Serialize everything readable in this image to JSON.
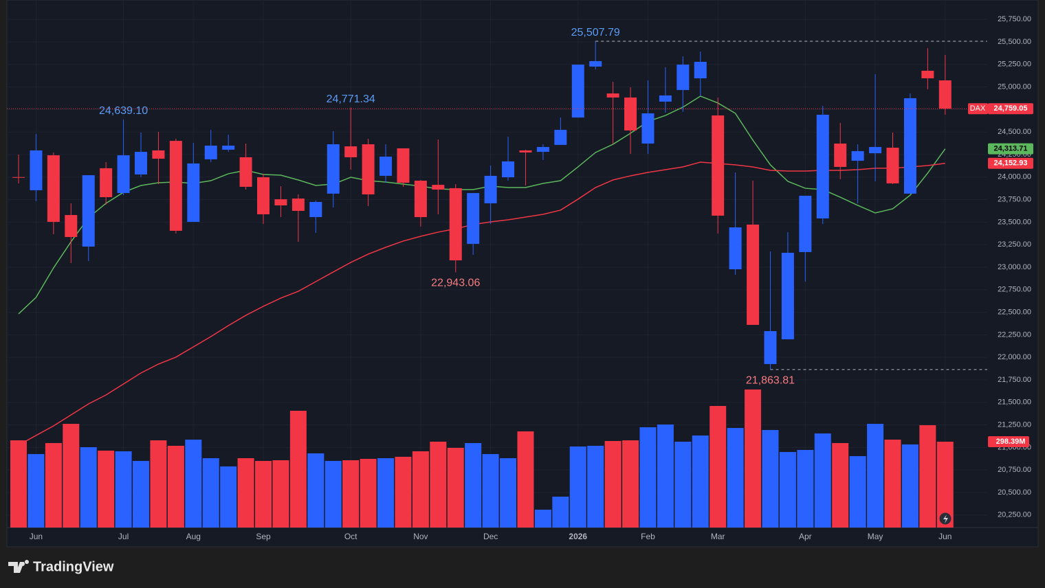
{
  "chart_data": {
    "type": "candlestick",
    "symbol": "DAX",
    "categories": [
      null,
      "Jun",
      null,
      null,
      null,
      null,
      "Jul",
      null,
      null,
      null,
      "Aug",
      null,
      null,
      null,
      "Sep",
      null,
      null,
      null,
      null,
      "Oct",
      null,
      null,
      null,
      "Nov",
      null,
      null,
      null,
      "Dec",
      null,
      null,
      null,
      null,
      "2026",
      null,
      null,
      null,
      "Feb",
      null,
      null,
      null,
      "Mar",
      null,
      null,
      null,
      null,
      "Apr",
      null,
      null,
      null,
      "May",
      null,
      null,
      null,
      "Jun"
    ],
    "open": [
      24000,
      23854,
      24242,
      23579,
      23229,
      24098,
      23823,
      24029,
      24296,
      24402,
      23503,
      24197,
      24304,
      24220,
      23998,
      23754,
      23762,
      23556,
      23816,
      24341,
      24364,
      24014,
      24319,
      23960,
      23914,
      23877,
      23259,
      23709,
      23998,
      24296,
      24280,
      24357,
      24661,
      25226,
      24928,
      24883,
      24372,
      24837,
      24966,
      25096,
      24684,
      22977,
      23473,
      21925,
      22200,
      23168,
      23541,
      24372,
      24181,
      24265,
      24326,
      23816,
      25180,
      25073
    ],
    "high": [
      24250,
      24479,
      24273,
      23709,
      24021,
      24166,
      24639.1,
      24494,
      24502,
      24425,
      24380,
      24524,
      24471,
      24372,
      24037,
      23899,
      23808,
      23739,
      24509,
      24771.34,
      24425,
      24364,
      24319,
      23968,
      24418,
      23922,
      23823,
      24128,
      24448,
      24304,
      24364,
      24661,
      25248,
      25507.79,
      25058,
      24997,
      25073,
      25218,
      25340,
      25393,
      24883,
      24052,
      23960,
      23175,
      23389,
      23793,
      24791,
      24601,
      24364,
      25142,
      24494,
      24928,
      25431,
      25355
    ],
    "low": [
      23930,
      23732,
      23366,
      23046,
      23069,
      23694,
      23800,
      23998,
      23922,
      23374,
      23503,
      24166,
      24281,
      23861,
      23480,
      23556,
      23282,
      23381,
      23663,
      24082,
      23678,
      23937,
      23892,
      23450,
      23587,
      22943.06,
      23137,
      23480,
      23960,
      23907,
      24189,
      24357,
      24661,
      25195,
      24364,
      24258,
      24258,
      24715,
      24723,
      24898,
      23374,
      22916,
      22360,
      21863.81,
      22200,
      22840,
      23480,
      23976,
      23709,
      23953,
      23922,
      23816,
      24974,
      24692
    ],
    "close": [
      23995,
      24296,
      23503,
      23335,
      24021,
      23777,
      24242,
      24280,
      24204,
      23404,
      24151,
      24349,
      24349,
      23892,
      23587,
      23686,
      23625,
      23724,
      24364,
      24220,
      23808,
      24227,
      23937,
      23556,
      23861,
      23076,
      23823,
      24014,
      24174,
      24273,
      24334,
      24524,
      25248,
      25287,
      24883,
      24517,
      24707,
      24906,
      25248,
      25279,
      23572,
      23442,
      22360,
      22291,
      23160,
      23793,
      24692,
      24113,
      24288,
      24334,
      23930,
      24875,
      25096,
      24759.05
    ],
    "up_color": "#2962ff",
    "down_color": "#f23645",
    "last_price_label": "24,759.05",
    "volume": {
      "values": [
        303.1,
        255.4,
        293.6,
        360.4,
        279.3,
        267.3,
        265.0,
        231.5,
        303.1,
        284.1,
        305.5,
        241.1,
        212.4,
        241.1,
        231.5,
        233.9,
        405.8,
        257.8,
        231.5,
        233.9,
        238.7,
        241.1,
        245.9,
        265.0,
        298.4,
        276.9,
        293.6,
        255.4,
        241.1,
        334.2,
        62.1,
        107.4,
        281.7,
        284.1,
        300.8,
        303.1,
        348.5,
        358.1,
        298.4,
        319.9,
        422.5,
        346.1,
        479.8,
        339.0,
        262.6,
        269.7,
        327.0,
        293.6,
        248.2,
        360.4,
        305.5,
        288.8,
        355.7,
        298.39
      ],
      "last_label": "298.39M"
    },
    "moving_averages": [
      {
        "color": "#5cb85c",
        "last_label": "24,313.71",
        "values": [
          22482,
          22665,
          22992,
          23282,
          23549,
          23709,
          23831,
          23907,
          23937,
          23945,
          23930,
          23960,
          24037,
          24075,
          24029,
          24021,
          23968,
          23907,
          23922,
          23998,
          23960,
          23945,
          23922,
          23899,
          23869,
          23861,
          23861,
          23899,
          23884,
          23884,
          23930,
          23960,
          24113,
          24273,
          24364,
          24486,
          24616,
          24684,
          24776,
          24898,
          24822,
          24707,
          24410,
          24136,
          23953,
          23876,
          23861,
          23777,
          23686,
          23602,
          23648,
          23800,
          24044,
          24313.71
        ]
      },
      {
        "color": "#f23645",
        "last_label": "24,152.93",
        "values": [
          21026,
          21133,
          21239,
          21361,
          21483,
          21582,
          21704,
          21826,
          21925,
          22002,
          22116,
          22230,
          22352,
          22466,
          22566,
          22657,
          22733,
          22840,
          22947,
          23053,
          23145,
          23221,
          23290,
          23343,
          23389,
          23427,
          23473,
          23503,
          23526,
          23556,
          23587,
          23633,
          23755,
          23884,
          23968,
          24014,
          24052,
          24082,
          24113,
          24166,
          24151,
          24136,
          24113,
          24075,
          24067,
          24067,
          24075,
          24075,
          24082,
          24098,
          24098,
          24113,
          24128,
          24152.93
        ]
      }
    ],
    "annotations": [
      {
        "text": "24,639.10",
        "value": 24639.1,
        "at": "high",
        "color": "#5b9cf6",
        "guide": false
      },
      {
        "text": "24,771.34",
        "value": 24771.34,
        "at": "high",
        "color": "#5b9cf6",
        "guide": false
      },
      {
        "text": "25,507.79",
        "value": 25507.79,
        "at": "high",
        "color": "#5b9cf6",
        "guide": true
      },
      {
        "text": "22,943.06",
        "value": 22943.06,
        "at": "low",
        "color": "#f77c80",
        "guide": false
      },
      {
        "text": "21,863.81",
        "value": 21863.81,
        "at": "low",
        "color": "#f77c80",
        "guide": true
      }
    ],
    "ylim": [
      20111,
      25965
    ],
    "yticks": [
      {
        "value": 20250,
        "label": "20,250.00"
      },
      {
        "value": 20500,
        "label": "20,500.00"
      },
      {
        "value": 20750,
        "label": "20,750.00"
      },
      {
        "value": 21000,
        "label": "21,000.00"
      },
      {
        "value": 21250,
        "label": "21,250.00"
      },
      {
        "value": 21500,
        "label": "21,500.00"
      },
      {
        "value": 21750,
        "label": "21,750.00"
      },
      {
        "value": 22000,
        "label": "22,000.00"
      },
      {
        "value": 22250,
        "label": "22,250.00"
      },
      {
        "value": 22500,
        "label": "22,500.00"
      },
      {
        "value": 22750,
        "label": "22,750.00"
      },
      {
        "value": 23000,
        "label": "23,000.00"
      },
      {
        "value": 23250,
        "label": "23,250.00"
      },
      {
        "value": 23500,
        "label": "23,500.00"
      },
      {
        "value": 23750,
        "label": "23,750.00"
      },
      {
        "value": 24000,
        "label": "24,000.00"
      },
      {
        "value": 24250,
        "label": "24,250.00"
      },
      {
        "value": 24500,
        "label": "24,500.00"
      },
      {
        "value": 24750,
        "label": "24,750.00"
      },
      {
        "value": 25000,
        "label": "25,000.00"
      },
      {
        "value": 25250,
        "label": "25,250.00"
      },
      {
        "value": 25500,
        "label": "25,500.00"
      },
      {
        "value": 25750,
        "label": "25,750.00"
      }
    ],
    "grid": true
  },
  "footer": {
    "brand": "TradingView"
  }
}
